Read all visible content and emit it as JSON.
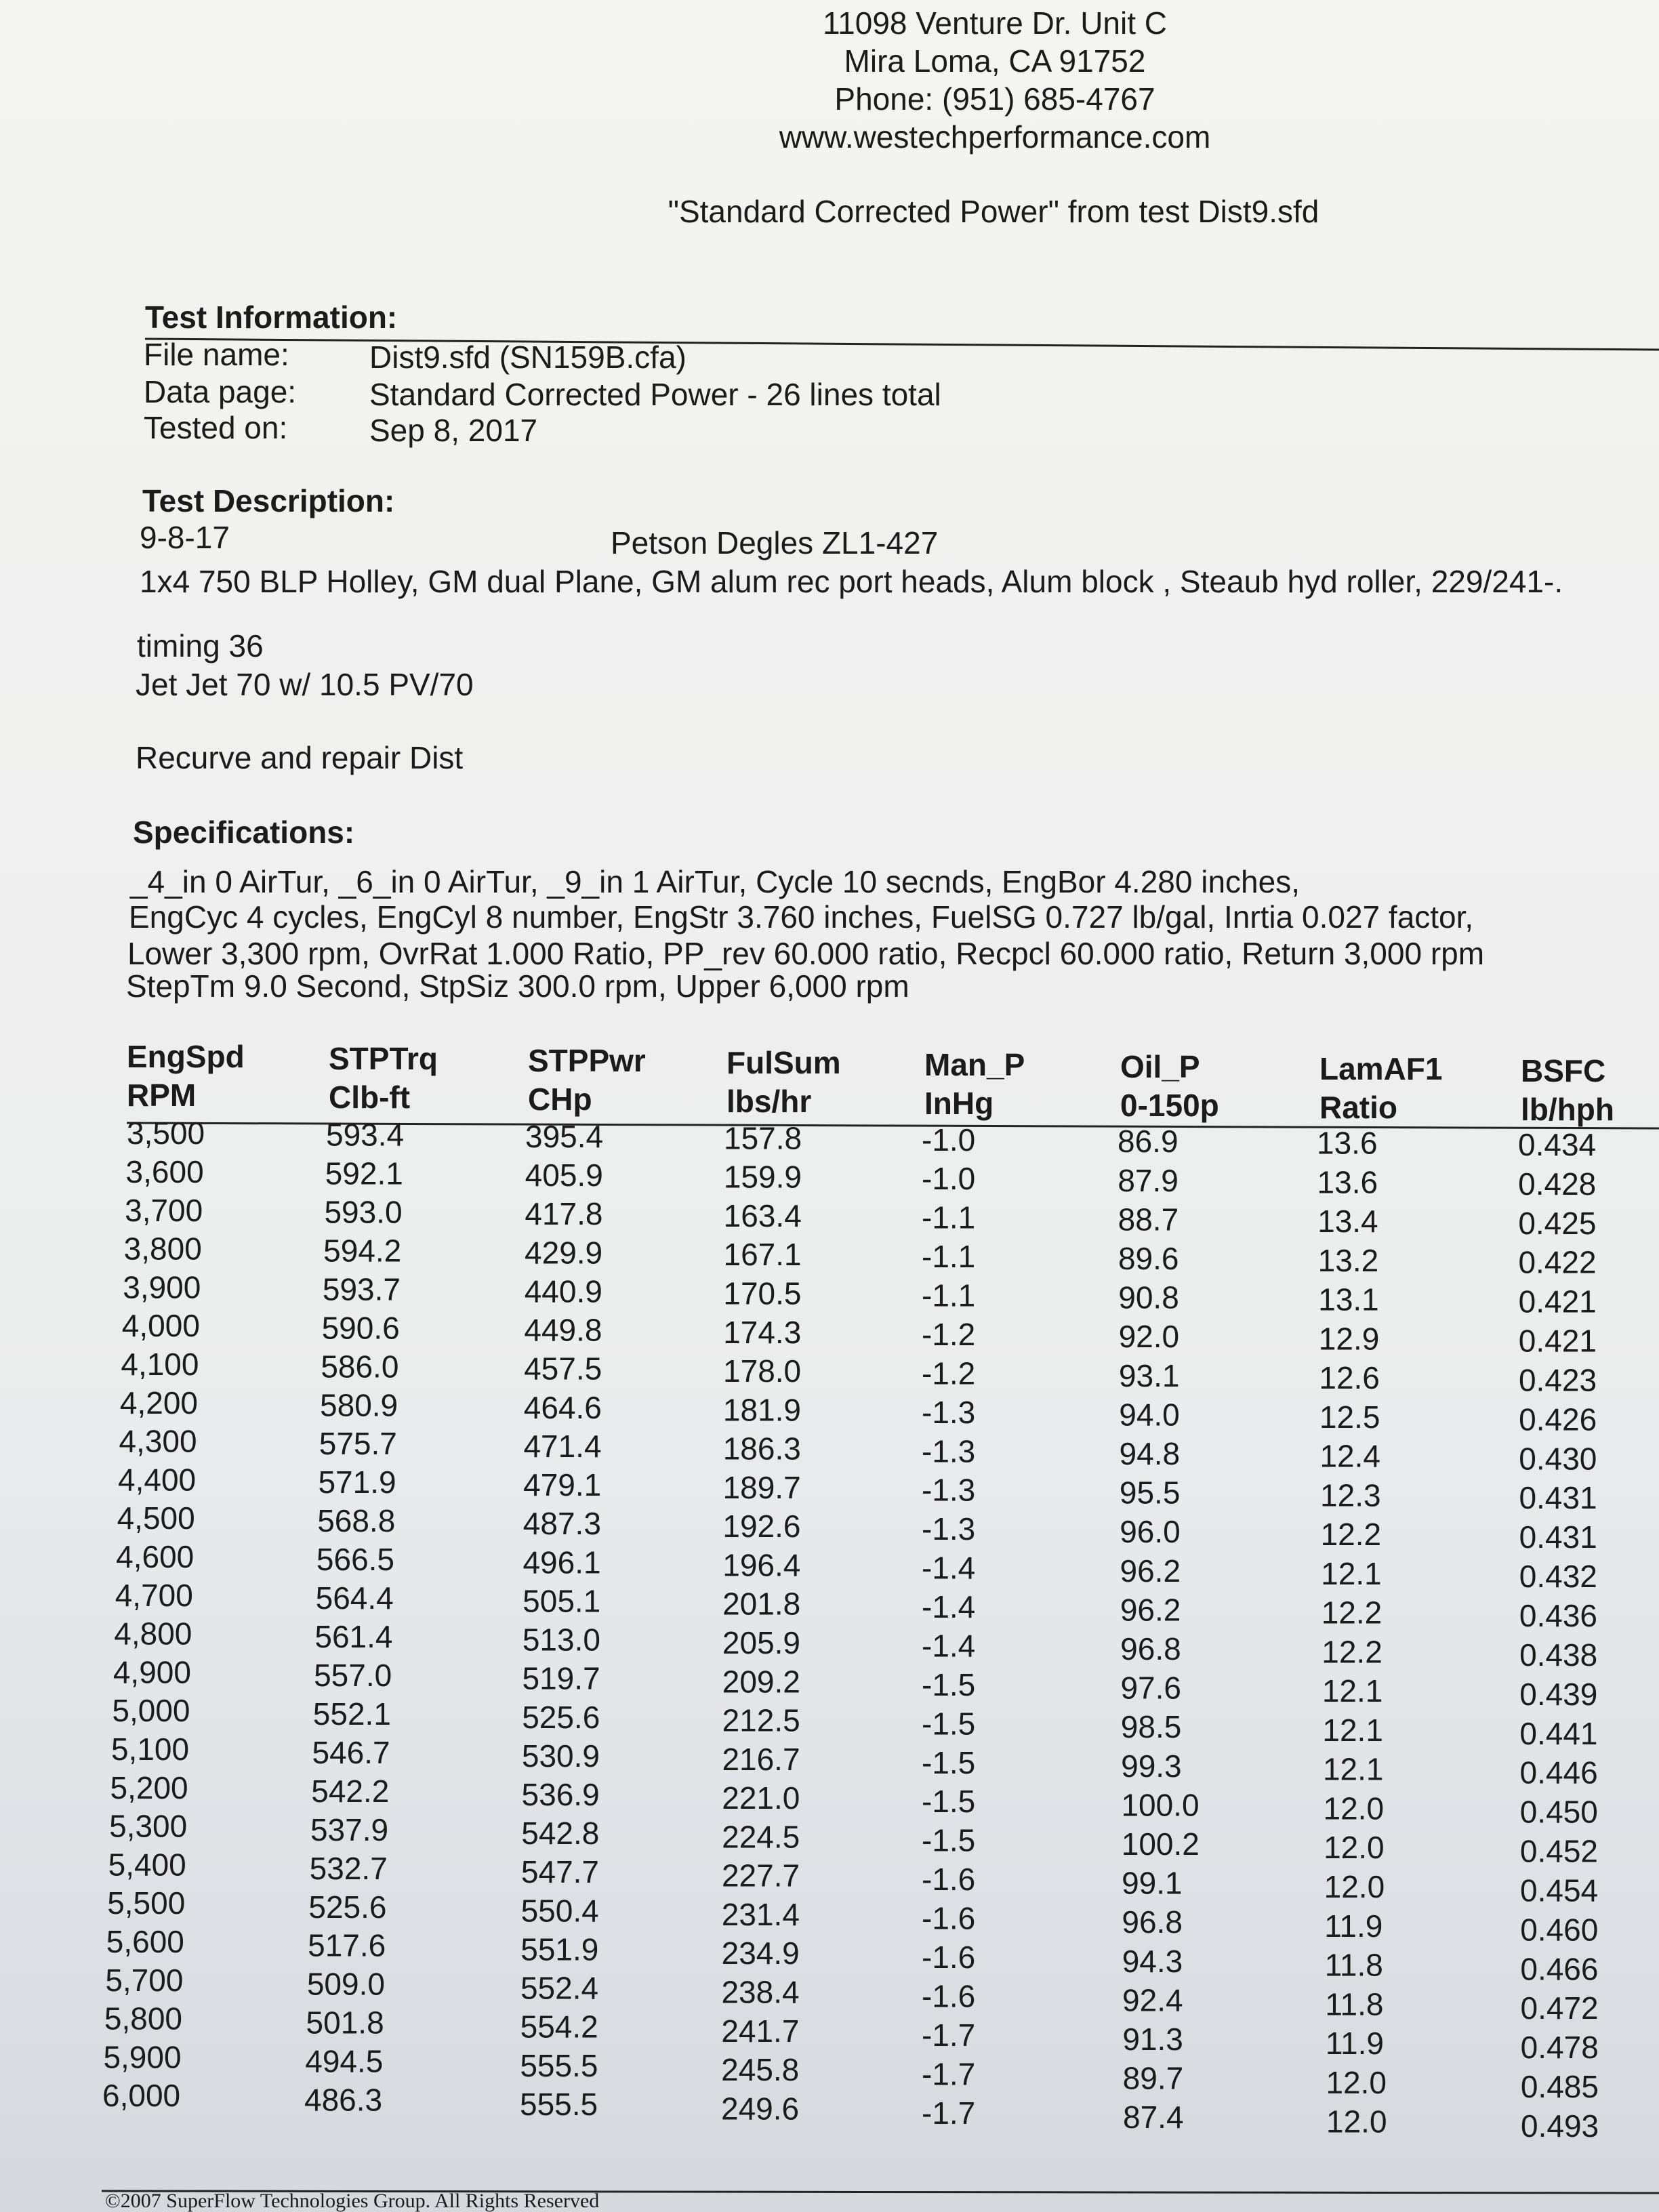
{
  "header": {
    "address": "11098 Venture Dr. Unit C",
    "city": "Mira Loma, CA 91752",
    "phone": "Phone: (951) 685-4767",
    "website": "www.westechperformance.com",
    "report": "\"Standard Corrected Power\" from test Dist9.sfd"
  },
  "test_information": {
    "title": "Test Information:",
    "rows": [
      [
        "File name:",
        "Dist9.sfd  (SN159B.cfa)"
      ],
      [
        "Data page:",
        "Standard Corrected Power - 26 lines total"
      ],
      [
        "Tested on:",
        "Sep 8, 2017"
      ]
    ]
  },
  "test_description": {
    "title": "Test Description:",
    "date": "9-8-17",
    "name": "Petson Degles ZL1-427",
    "lines": [
      "1x4 750 BLP Holley, GM dual Plane, GM alum rec port heads, Alum block , Steaub hyd roller, 229/241-.",
      "timing 36",
      "Jet Jet 70  w/ 10.5 PV/70",
      "Recurve and repair Dist"
    ]
  },
  "specifications": {
    "title": "Specifications:",
    "lines": [
      "_4_in 0 AirTur,   _6_in 0 AirTur,   _9_in 1 AirTur,   Cycle 10 secnds,   EngBor 4.280 inches,",
      "EngCyc 4 cycles,   EngCyl 8 number,   EngStr 3.760 inches,   FuelSG 0.727 lb/gal,   Inrtia 0.027 factor,",
      "Lower 3,300 rpm,   OvrRat 1.000 Ratio,   PP_rev 60.000 ratio,   Recpcl 60.000 ratio,   Return 3,000 rpm",
      "StepTm 9.0 Second,   StpSiz 300.0 rpm,   Upper 6,000 rpm"
    ]
  },
  "table": {
    "columns": [
      [
        "EngSpd",
        "RPM"
      ],
      [
        "STPTrq",
        "Clb-ft"
      ],
      [
        "STPPwr",
        "CHp"
      ],
      [
        "FulSum",
        "lbs/hr"
      ],
      [
        "Man_P",
        "InHg"
      ],
      [
        "Oil_P",
        "0-150p"
      ],
      [
        "LamAF1",
        "Ratio"
      ],
      [
        "BSFC",
        "lb/hph"
      ]
    ],
    "rows": [
      [
        "3,500",
        "593.4",
        "395.4",
        "157.8",
        "-1.0",
        "86.9",
        "13.6",
        "0.434"
      ],
      [
        "3,600",
        "592.1",
        "405.9",
        "159.9",
        "-1.0",
        "87.9",
        "13.6",
        "0.428"
      ],
      [
        "3,700",
        "593.0",
        "417.8",
        "163.4",
        "-1.1",
        "88.7",
        "13.4",
        "0.425"
      ],
      [
        "3,800",
        "594.2",
        "429.9",
        "167.1",
        "-1.1",
        "89.6",
        "13.2",
        "0.422"
      ],
      [
        "3,900",
        "593.7",
        "440.9",
        "170.5",
        "-1.1",
        "90.8",
        "13.1",
        "0.421"
      ],
      [
        "4,000",
        "590.6",
        "449.8",
        "174.3",
        "-1.2",
        "92.0",
        "12.9",
        "0.421"
      ],
      [
        "4,100",
        "586.0",
        "457.5",
        "178.0",
        "-1.2",
        "93.1",
        "12.6",
        "0.423"
      ],
      [
        "4,200",
        "580.9",
        "464.6",
        "181.9",
        "-1.3",
        "94.0",
        "12.5",
        "0.426"
      ],
      [
        "4,300",
        "575.7",
        "471.4",
        "186.3",
        "-1.3",
        "94.8",
        "12.4",
        "0.430"
      ],
      [
        "4,400",
        "571.9",
        "479.1",
        "189.7",
        "-1.3",
        "95.5",
        "12.3",
        "0.431"
      ],
      [
        "4,500",
        "568.8",
        "487.3",
        "192.6",
        "-1.3",
        "96.0",
        "12.2",
        "0.431"
      ],
      [
        "4,600",
        "566.5",
        "496.1",
        "196.4",
        "-1.4",
        "96.2",
        "12.1",
        "0.432"
      ],
      [
        "4,700",
        "564.4",
        "505.1",
        "201.8",
        "-1.4",
        "96.2",
        "12.2",
        "0.436"
      ],
      [
        "4,800",
        "561.4",
        "513.0",
        "205.9",
        "-1.4",
        "96.8",
        "12.2",
        "0.438"
      ],
      [
        "4,900",
        "557.0",
        "519.7",
        "209.2",
        "-1.5",
        "97.6",
        "12.1",
        "0.439"
      ],
      [
        "5,000",
        "552.1",
        "525.6",
        "212.5",
        "-1.5",
        "98.5",
        "12.1",
        "0.441"
      ],
      [
        "5,100",
        "546.7",
        "530.9",
        "216.7",
        "-1.5",
        "99.3",
        "12.1",
        "0.446"
      ],
      [
        "5,200",
        "542.2",
        "536.9",
        "221.0",
        "-1.5",
        "100.0",
        "12.0",
        "0.450"
      ],
      [
        "5,300",
        "537.9",
        "542.8",
        "224.5",
        "-1.5",
        "100.2",
        "12.0",
        "0.452"
      ],
      [
        "5,400",
        "532.7",
        "547.7",
        "227.7",
        "-1.6",
        "99.1",
        "12.0",
        "0.454"
      ],
      [
        "5,500",
        "525.6",
        "550.4",
        "231.4",
        "-1.6",
        "96.8",
        "11.9",
        "0.460"
      ],
      [
        "5,600",
        "517.6",
        "551.9",
        "234.9",
        "-1.6",
        "94.3",
        "11.8",
        "0.466"
      ],
      [
        "5,700",
        "509.0",
        "552.4",
        "238.4",
        "-1.6",
        "92.4",
        "11.8",
        "0.472"
      ],
      [
        "5,800",
        "501.8",
        "554.2",
        "241.7",
        "-1.7",
        "91.3",
        "11.9",
        "0.478"
      ],
      [
        "5,900",
        "494.5",
        "555.5",
        "245.8",
        "-1.7",
        "89.7",
        "12.0",
        "0.485"
      ],
      [
        "6,000",
        "486.3",
        "555.5",
        "249.6",
        "-1.7",
        "87.4",
        "12.0",
        "0.493"
      ]
    ]
  },
  "footer": "©2007 SuperFlow Technologies Group.  All Rights Reserved"
}
